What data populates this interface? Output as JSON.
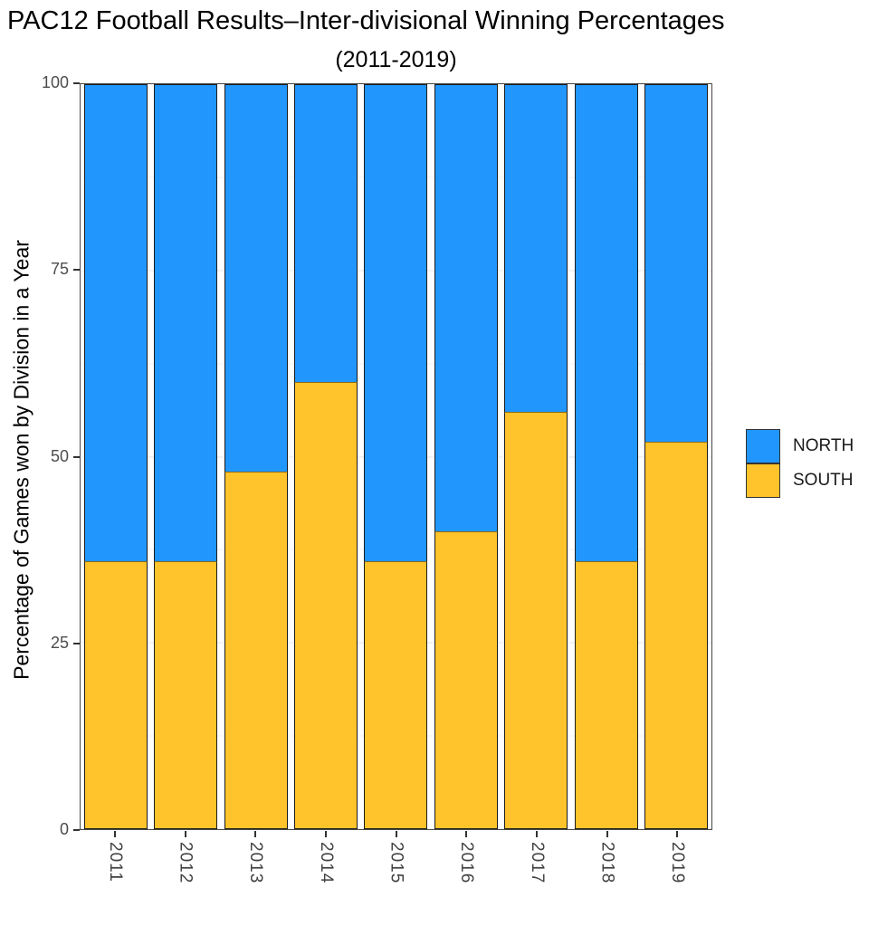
{
  "page": {
    "background": "#ffffff"
  },
  "chart_data": {
    "type": "bar",
    "stacked": true,
    "title": "PAC12 Football Results–Inter-divisional Winning Percentages",
    "subtitle": "(2011-2019)",
    "xlabel": "",
    "ylabel": "Percentage of Games won by Division in a Year",
    "ylim": [
      0,
      100
    ],
    "yticks": [
      0,
      25,
      50,
      75,
      100
    ],
    "yticks_minor": [
      12.5,
      37.5,
      62.5,
      87.5
    ],
    "grid": "on",
    "legend_position": "right",
    "categories": [
      "2011",
      "2012",
      "2013",
      "2014",
      "2015",
      "2016",
      "2017",
      "2018",
      "2019"
    ],
    "series": [
      {
        "name": "NORTH",
        "color": "#2196FD",
        "values": [
          64,
          64,
          52,
          40,
          64,
          60,
          44,
          64,
          48
        ]
      },
      {
        "name": "SOUTH",
        "color": "#FFC32B",
        "values": [
          36,
          36,
          48,
          60,
          36,
          40,
          56,
          36,
          52
        ]
      }
    ]
  }
}
